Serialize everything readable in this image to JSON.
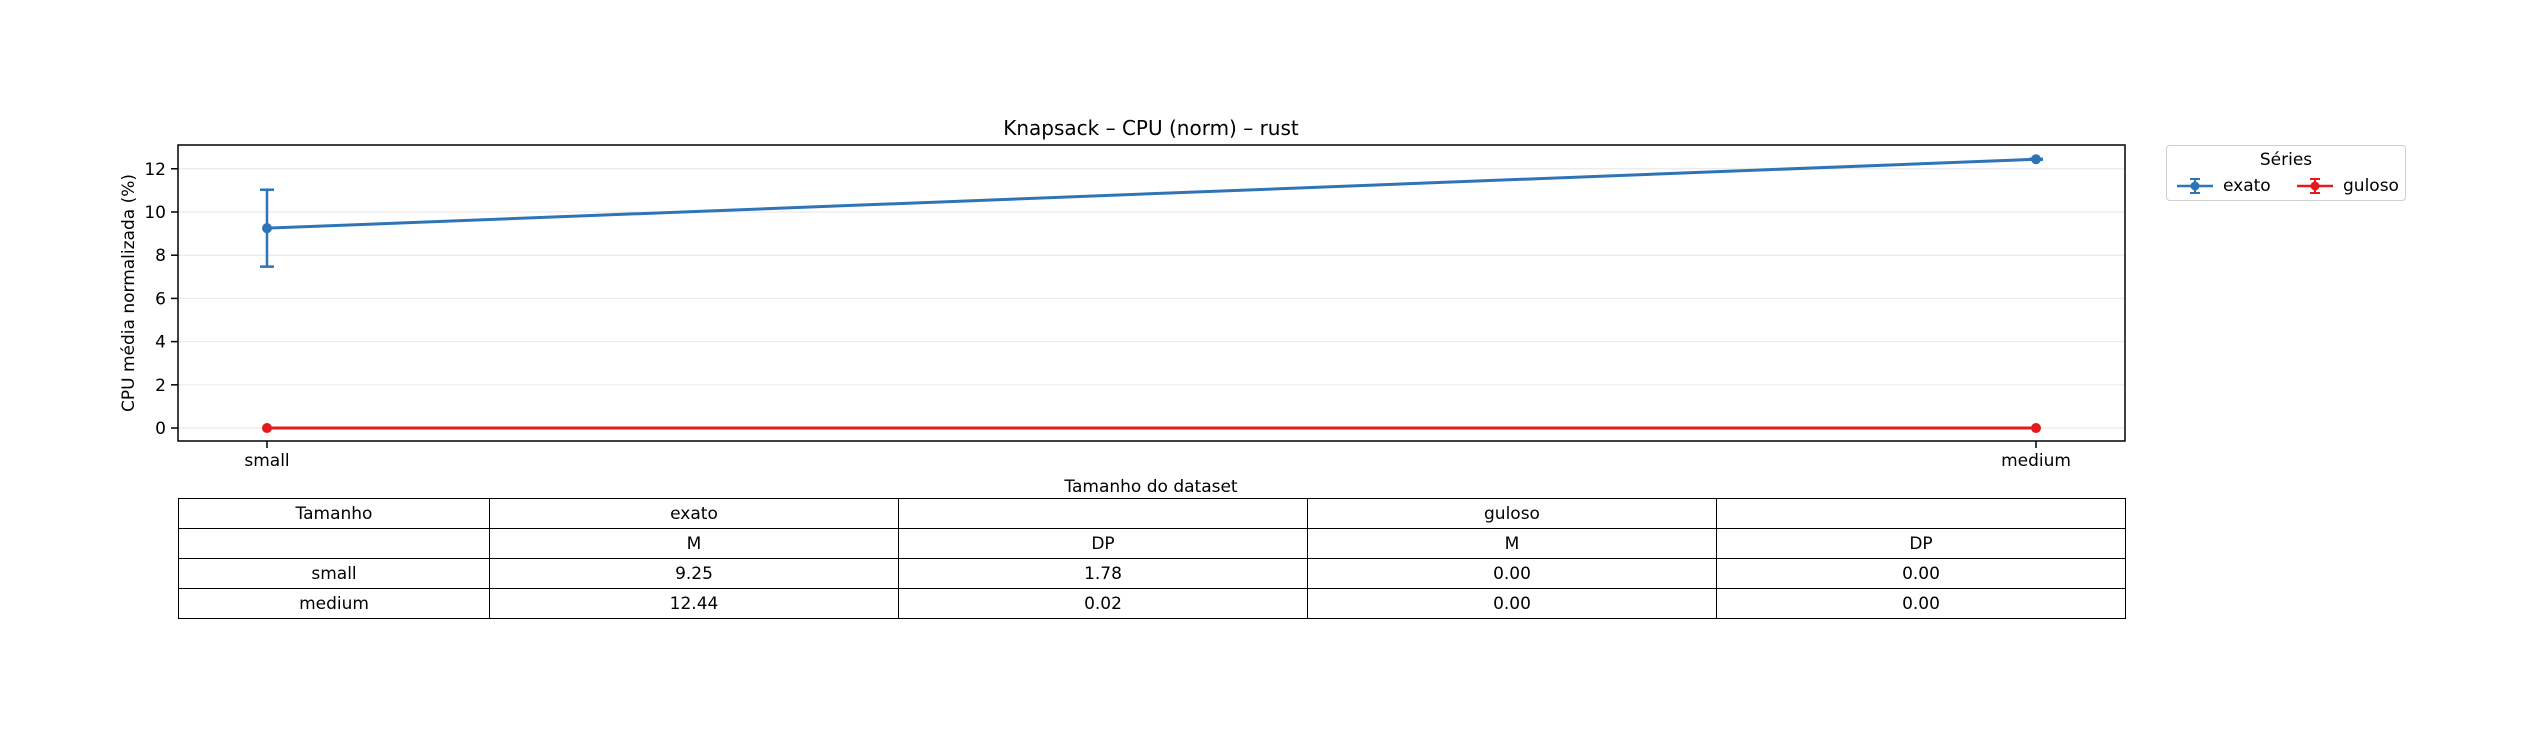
{
  "chart_data": {
    "type": "line",
    "title": "Knapsack – CPU (norm) – rust",
    "xlabel": "Tamanho do dataset",
    "ylabel": "CPU média normalizada (%)",
    "categories": [
      "small",
      "medium"
    ],
    "ylim": [
      -0.6,
      13.1
    ],
    "yticks": [
      0,
      2,
      4,
      6,
      8,
      10,
      12
    ],
    "grid": "horizontal",
    "legend_title": "Séries",
    "legend_placement": "outside-top-right",
    "series": [
      {
        "name": "exato",
        "color": "#2f74b5",
        "values": [
          9.25,
          12.44
        ],
        "errors": [
          1.78,
          0.02
        ]
      },
      {
        "name": "guloso",
        "color": "#e41a1c",
        "values": [
          0.0,
          0.0
        ],
        "errors": [
          0.0,
          0.0
        ]
      }
    ]
  },
  "table": {
    "header1": [
      "Tamanho",
      "exato",
      "",
      "guloso",
      ""
    ],
    "header2": [
      "",
      "M",
      "DP",
      "M",
      "DP"
    ],
    "rows": [
      [
        "small",
        "9.25",
        "1.78",
        "0.00",
        "0.00"
      ],
      [
        "medium",
        "12.44",
        "0.02",
        "0.00",
        "0.00"
      ]
    ]
  }
}
